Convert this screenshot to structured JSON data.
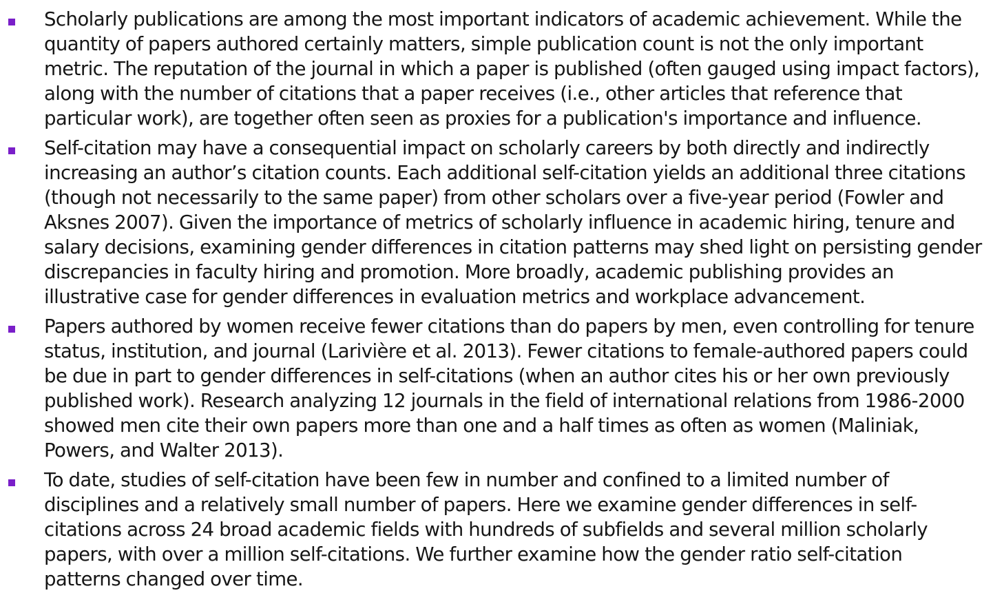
{
  "colors": {
    "bullet": "#7a1fc9",
    "text": "#161616",
    "background": "#ffffff"
  },
  "bullets": [
    {
      "marker_icon": "square-bullet-icon",
      "text": "Scholarly publications are among the most important indicators of academic achievement. While the quantity of papers authored certainly matters, simple publication count is not the only important metric. The reputation of the journal in which a paper is published (often gauged using impact factors), along with the number of citations that a paper receives (i.e., other articles that reference that particular work), are together often seen as proxies for a publication's importance and influence."
    },
    {
      "marker_icon": "square-bullet-icon",
      "text": "Self-citation may have a consequential impact on scholarly careers by both directly and indirectly increasing an author’s citation counts. Each additional self-citation yields an additional three citations (though not necessarily to the same paper) from other scholars over a five-year period (Fowler and Aksnes 2007). Given the importance of metrics of scholarly influence in academic hiring, tenure and salary decisions, examining gender differences in citation patterns may shed light on persisting gender discrepancies in faculty hiring and promotion. More broadly, academic publishing provides an illustrative case for gender differences in evaluation metrics and workplace advancement."
    },
    {
      "marker_icon": "square-bullet-icon",
      "text": "Papers authored by women receive fewer citations than do papers by men, even controlling for tenure status, institution, and journal (Larivière et al. 2013). Fewer citations to female-authored papers could be due in part to gender differences in self-citations (when an author cites his or her own previously published work). Research analyzing 12 journals in the field of international relations from 1986-2000 showed men cite their own papers more than one and a half times as often as women (Maliniak, Powers, and Walter 2013)."
    },
    {
      "marker_icon": "square-bullet-icon",
      "text": "To date, studies of self-citation have been few in number and confined to a limited number of disciplines and a relatively small number of papers. Here we examine gender differences in self-citations across 24 broad academic fields with hundreds of subfields and several million scholarly papers, with over a million self-citations. We further examine how the gender ratio self-citation patterns changed over time."
    }
  ]
}
